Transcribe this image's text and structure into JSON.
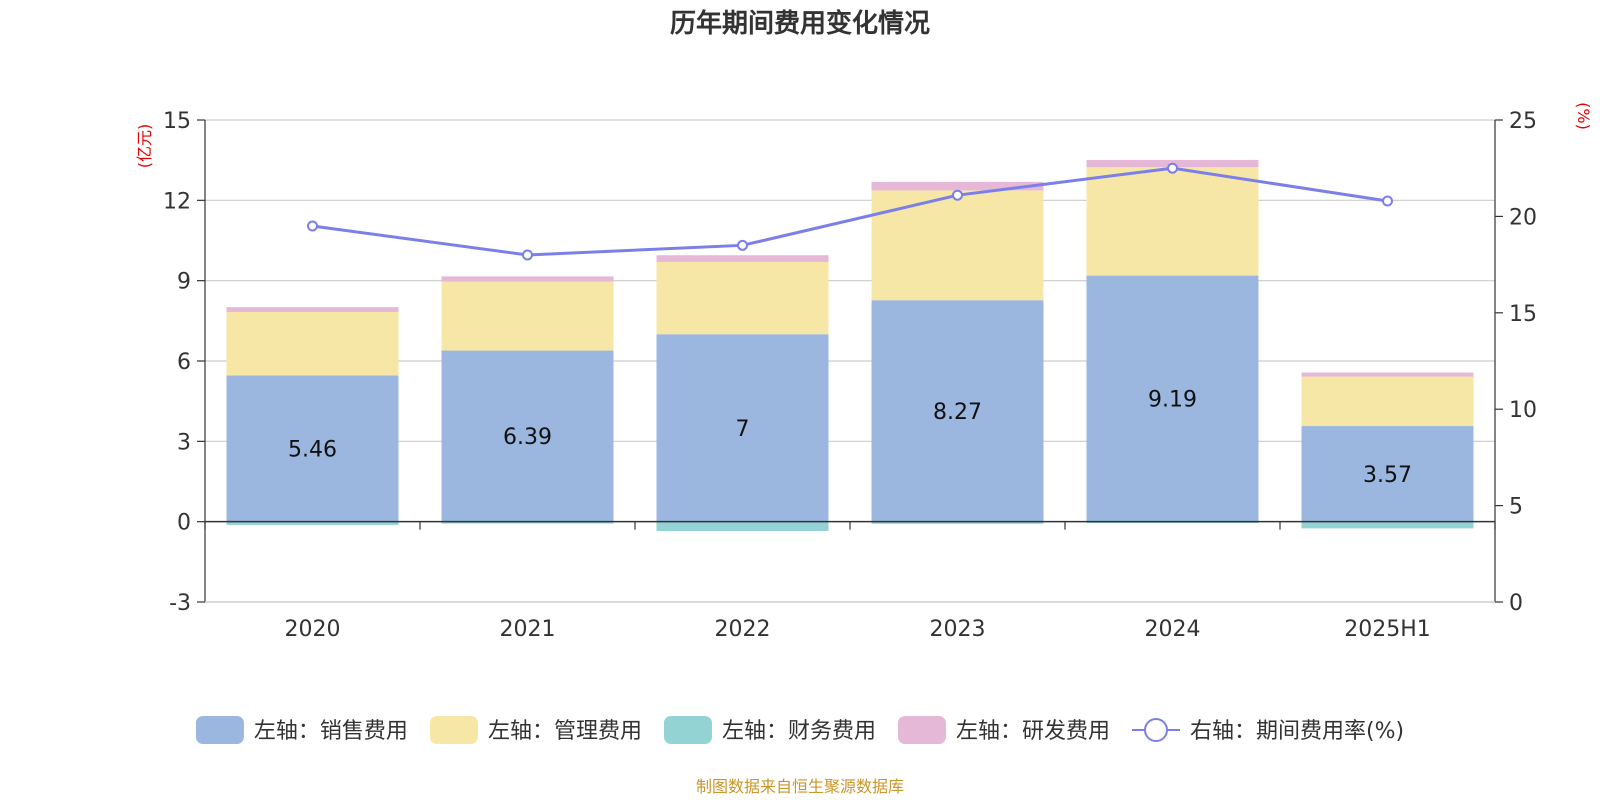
{
  "chart_data": {
    "type": "bar",
    "title": "历年期间费用变化情况",
    "categories": [
      "2020",
      "2021",
      "2022",
      "2023",
      "2024",
      "2025H1"
    ],
    "left_axis": {
      "unit": "(亿元)",
      "min": -3,
      "max": 15,
      "ticks": [
        -3,
        0,
        3,
        6,
        9,
        12,
        15
      ]
    },
    "right_axis": {
      "unit": "(%)",
      "min": 0,
      "max": 25,
      "ticks": [
        0,
        5,
        10,
        15,
        20,
        25
      ]
    },
    "grid": true,
    "legend_position": "bottom",
    "series": [
      {
        "name": "左轴：销售费用",
        "kind": "bar",
        "axis": "left",
        "color": "#9bb7e0",
        "values": [
          5.46,
          6.39,
          7,
          8.27,
          9.19,
          3.57
        ],
        "labels": [
          "5.46",
          "6.39",
          "7",
          "8.27",
          "9.19",
          "3.57"
        ]
      },
      {
        "name": "左轴：管理费用",
        "kind": "bar",
        "axis": "left",
        "color": "#f7e7a6",
        "values": [
          2.37,
          2.57,
          2.7,
          4.1,
          4.05,
          1.85
        ]
      },
      {
        "name": "左轴：财务费用",
        "kind": "bar",
        "axis": "left",
        "color": "#93d3d3",
        "values": [
          -0.12,
          -0.07,
          -0.35,
          -0.08,
          -0.05,
          -0.25
        ]
      },
      {
        "name": "左轴：研发费用",
        "kind": "bar",
        "axis": "left",
        "color": "#e6b8d8",
        "values": [
          0.18,
          0.2,
          0.25,
          0.32,
          0.27,
          0.15
        ]
      },
      {
        "name": "右轴：期间费用率(%)",
        "kind": "line",
        "axis": "right",
        "color": "#7b7fe8",
        "values": [
          19.5,
          18.0,
          18.5,
          21.1,
          22.5,
          20.8
        ]
      }
    ]
  },
  "source_note": "制图数据来自恒生聚源数据库"
}
